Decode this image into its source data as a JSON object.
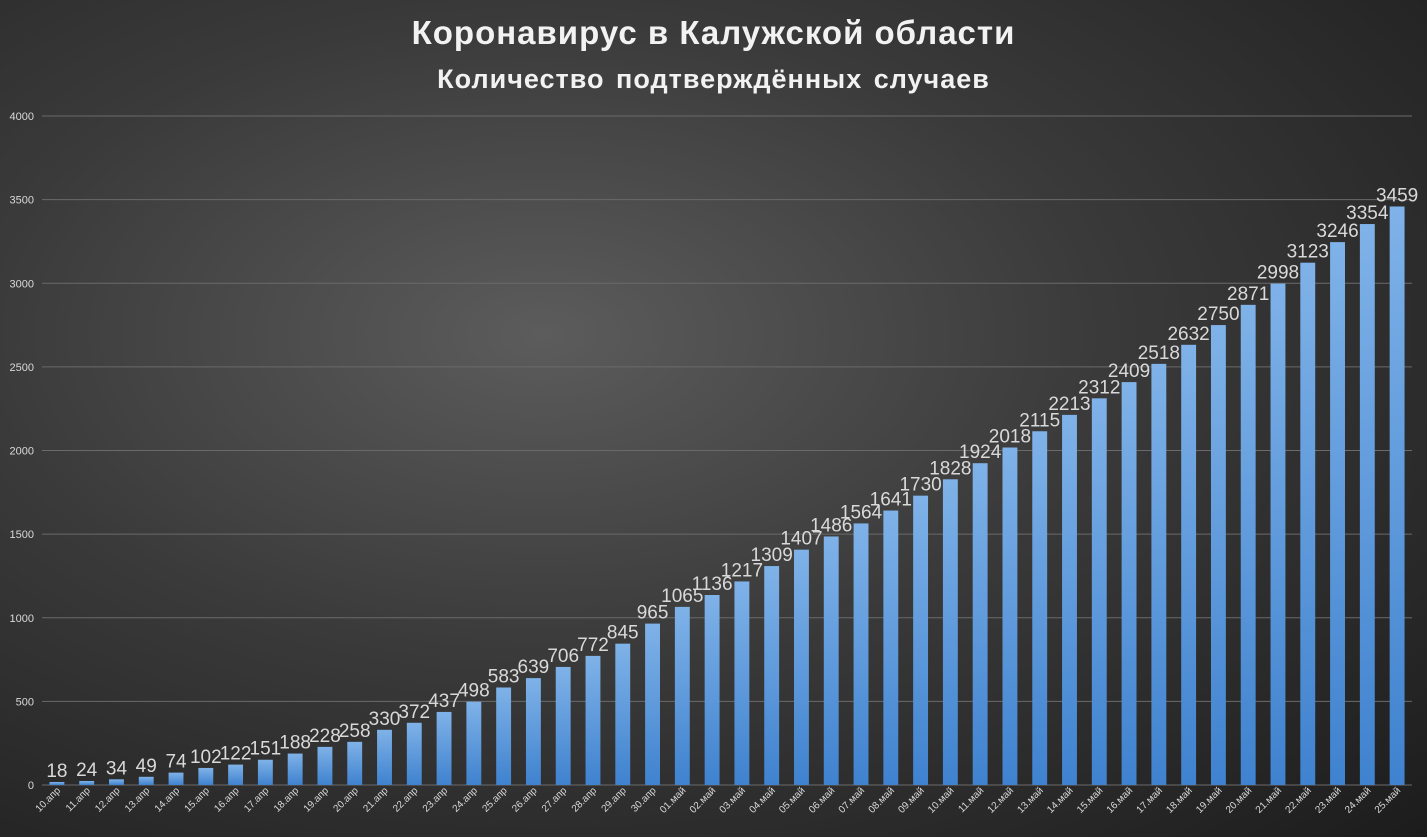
{
  "colors": {
    "bar_top": "#7fb2e8",
    "bar_bottom": "#3f82cf",
    "grid": "#6a6a6a",
    "text": "#d9d9d9"
  },
  "chart_data": {
    "type": "bar",
    "title": "Коронавирус в Калужской области",
    "subtitle": "Количество подтверждённых случаев",
    "xlabel": "",
    "ylabel": "",
    "ylim": [
      0,
      4000
    ],
    "yticks": [
      0,
      500,
      1000,
      1500,
      2000,
      2500,
      3000,
      3500,
      4000
    ],
    "grid": true,
    "legend": "none",
    "categories": [
      "10.апр",
      "11.апр",
      "12.апр",
      "13.апр",
      "14.апр",
      "15.апр",
      "16.апр",
      "17.апр",
      "18.апр",
      "19.апр",
      "20.апр",
      "21.апр",
      "22.апр",
      "23.апр",
      "24.апр",
      "25.апр",
      "26.апр",
      "27.апр",
      "28.апр",
      "29.апр",
      "30.апр",
      "01.май",
      "02.май",
      "03.май",
      "04.май",
      "05.май",
      "06.май",
      "07.май",
      "08.май",
      "09.май",
      "10.май",
      "11.май",
      "12.май",
      "13.май",
      "14.май",
      "15.май",
      "16.май",
      "17.май",
      "18.май",
      "19.май",
      "20.май",
      "21.май",
      "22.май",
      "23.май",
      "24.май",
      "25.май"
    ],
    "values": [
      18,
      24,
      34,
      49,
      74,
      102,
      122,
      151,
      188,
      228,
      258,
      330,
      372,
      437,
      498,
      583,
      639,
      706,
      772,
      845,
      965,
      1065,
      1136,
      1217,
      1309,
      1407,
      1486,
      1564,
      1641,
      1730,
      1828,
      1924,
      2018,
      2115,
      2213,
      2312,
      2409,
      2518,
      2632,
      2750,
      2871,
      2998,
      3123,
      3246,
      3354,
      3459
    ]
  }
}
